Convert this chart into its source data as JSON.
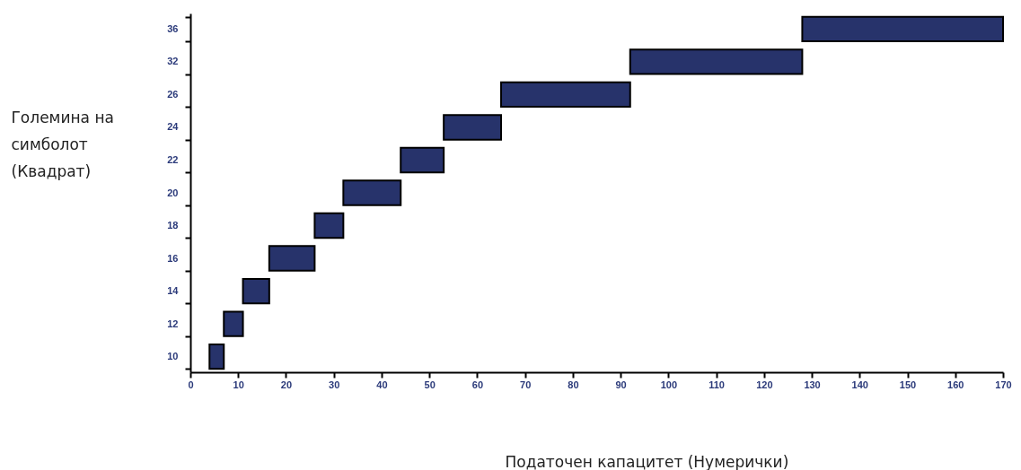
{
  "chart_data": {
    "type": "bar",
    "orientation": "horizontal",
    "xlabel": "Податочен капацитет (Нумерички)",
    "ylabel": "Големина на симболот (Квадрат)",
    "categories": [
      "36",
      "32",
      "26",
      "24",
      "22",
      "20",
      "18",
      "16",
      "14",
      "12",
      "10"
    ],
    "base": [
      128,
      92,
      65,
      53,
      44,
      32,
      26,
      16.5,
      11,
      7,
      4
    ],
    "values": [
      42,
      36,
      27,
      12,
      9,
      12,
      6,
      9.5,
      5.5,
      4,
      3
    ],
    "color": "#27336b",
    "xlim": [
      0,
      170
    ],
    "xticks": [
      0,
      10,
      20,
      30,
      40,
      50,
      60,
      70,
      80,
      90,
      100,
      110,
      120,
      130,
      140,
      150,
      160,
      170
    ],
    "grid": false
  }
}
